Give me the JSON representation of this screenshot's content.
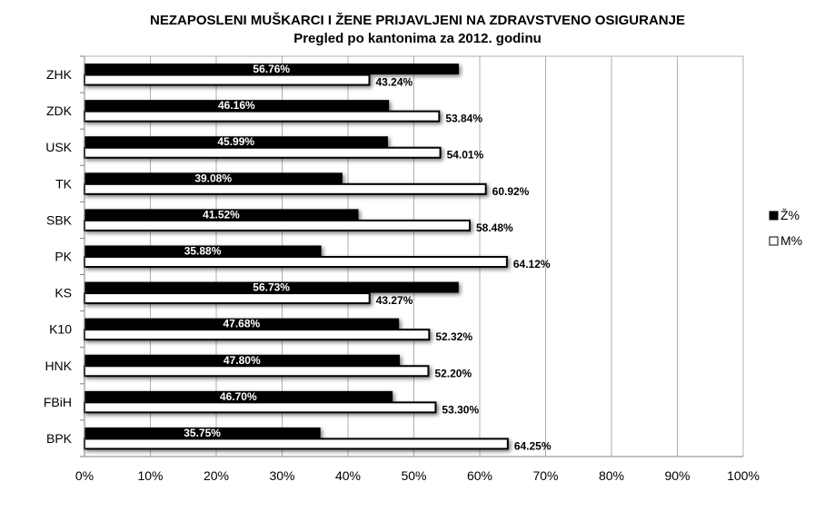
{
  "chart_data": {
    "type": "bar",
    "orientation": "horizontal",
    "title": "NEZAPOSLENI MUŠKARCI I ŽENE PRIJAVLJENI NA ZDRAVSTVENO OSIGURANJE",
    "subtitle": "Pregled po kantonima za  2012. godinu",
    "categories": [
      "ZHK",
      "ZDK",
      "USK",
      "TK",
      "SBK",
      "PK",
      "KS",
      "K10",
      "HNK",
      "FBiH",
      "BPK"
    ],
    "series": [
      {
        "name": "Ž%",
        "color": "#000000",
        "values": [
          56.76,
          46.16,
          45.99,
          39.08,
          41.52,
          35.88,
          56.73,
          47.68,
          47.8,
          46.7,
          35.75
        ],
        "labels": [
          "56.76%",
          "46.16%",
          "45.99%",
          "39.08%",
          "41.52%",
          "35.88%",
          "56.73%",
          "47.68%",
          "47.80%",
          "46.70%",
          "35.75%"
        ]
      },
      {
        "name": "M%",
        "color": "#ffffff",
        "values": [
          43.24,
          53.84,
          54.01,
          60.92,
          58.48,
          64.12,
          43.27,
          52.32,
          52.2,
          53.3,
          64.25
        ],
        "labels": [
          "43.24%",
          "53.84%",
          "54.01%",
          "60.92%",
          "58.48%",
          "64.12%",
          "43.27%",
          "52.32%",
          "52.20%",
          "53.30%",
          "64.25%"
        ]
      }
    ],
    "xlim": [
      0,
      100
    ],
    "xticks": [
      "0%",
      "10%",
      "20%",
      "30%",
      "40%",
      "50%",
      "60%",
      "70%",
      "80%",
      "90%",
      "100%"
    ],
    "grid": true,
    "legend_placement": "right"
  }
}
